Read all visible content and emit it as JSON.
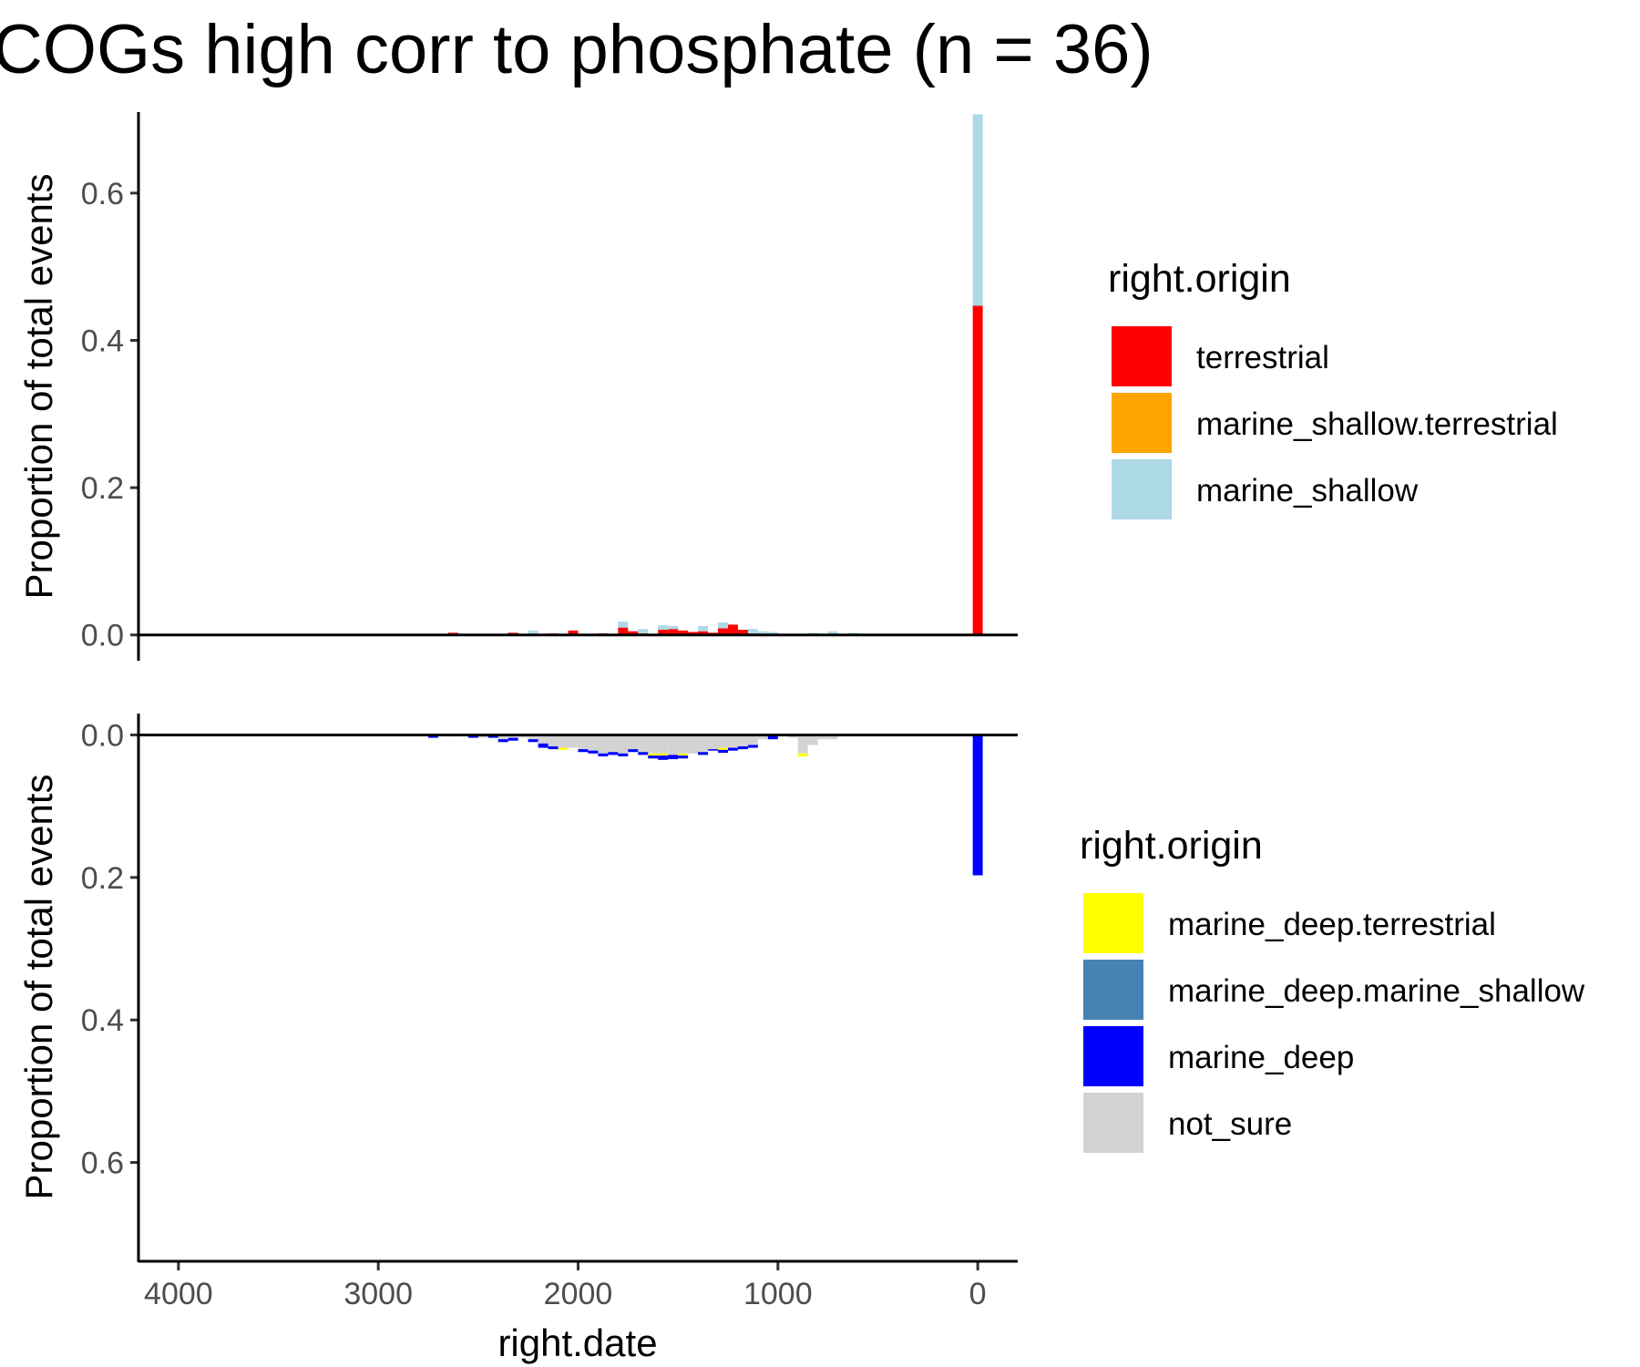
{
  "title": "COGs high corr to phosphate (n = 36)",
  "colors": {
    "terrestrial": "#ff0000",
    "marine_shallow.terrestrial": "#ffa500",
    "marine_shallow": "#add8e6",
    "marine_deep.terrestrial": "#ffff00",
    "marine_deep.marine_shallow": "#4682b4",
    "marine_deep": "#0000ff",
    "not_sure": "#d3d3d3"
  },
  "chart_data": [
    {
      "type": "bar",
      "panel": "top",
      "xlabel": "",
      "ylabel": "Proportion of total events",
      "xlim": [
        4200,
        -200
      ],
      "ylim": [
        -0.035,
        0.71
      ],
      "y_ticks": [
        "0.0",
        "0.2",
        "0.4",
        "0.6"
      ],
      "y_tick_values": [
        0,
        0.2,
        0.4,
        0.6
      ],
      "grid": false,
      "legend": {
        "title": "right.origin",
        "position": "right",
        "entries": [
          "terrestrial",
          "marine_shallow.terrestrial",
          "marine_shallow"
        ]
      },
      "bin_width": 50,
      "series": [
        {
          "name": "terrestrial",
          "color": "#ff0000",
          "points": [
            [
              2625,
              0.003
            ],
            [
              2325,
              0.003
            ],
            [
              2125,
              0.002
            ],
            [
              2025,
              0.006
            ],
            [
              1875,
              0.002
            ],
            [
              1775,
              0.01
            ],
            [
              1725,
              0.005
            ],
            [
              1675,
              0.002
            ],
            [
              1575,
              0.007
            ],
            [
              1525,
              0.008
            ],
            [
              1475,
              0.006
            ],
            [
              1425,
              0.004
            ],
            [
              1375,
              0.005
            ],
            [
              1325,
              0.003
            ],
            [
              1275,
              0.009
            ],
            [
              1225,
              0.014
            ],
            [
              1175,
              0.007
            ],
            [
              1125,
              0.002
            ],
            [
              0,
              0.447
            ]
          ]
        },
        {
          "name": "marine_shallow",
          "color": "#add8e6",
          "points": [
            [
              2225,
              0.006
            ],
            [
              1775,
              0.008
            ],
            [
              1675,
              0.006
            ],
            [
              1575,
              0.006
            ],
            [
              1525,
              0.004
            ],
            [
              1375,
              0.007
            ],
            [
              1275,
              0.008
            ],
            [
              1125,
              0.006
            ],
            [
              1075,
              0.005
            ],
            [
              1025,
              0.004
            ],
            [
              825,
              0.003
            ],
            [
              725,
              0.005
            ],
            [
              625,
              0.003
            ],
            [
              0,
              0.26
            ]
          ]
        }
      ]
    },
    {
      "type": "bar",
      "panel": "bottom",
      "xlabel": "right.date",
      "ylabel": "Proportion of total events",
      "xlim": [
        4200,
        -200
      ],
      "ylim": [
        0.74,
        -0.03
      ],
      "y_ticks": [
        "0.0",
        "0.2",
        "0.4",
        "0.6"
      ],
      "y_tick_values": [
        0,
        0.2,
        0.4,
        0.6
      ],
      "x_ticks": [
        "4000",
        "3000",
        "2000",
        "1000",
        "0"
      ],
      "x_tick_values": [
        4000,
        3000,
        2000,
        1000,
        0
      ],
      "grid": false,
      "legend": {
        "title": "right.origin",
        "position": "right",
        "entries": [
          "marine_deep.terrestrial",
          "marine_deep.marine_shallow",
          "marine_deep",
          "not_sure"
        ]
      },
      "bin_width": 50,
      "series": [
        {
          "name": "not_sure",
          "color": "#d3d3d3",
          "points": [
            [
              2475,
              0.004
            ],
            [
              2375,
              0.006
            ],
            [
              2325,
              0.004
            ],
            [
              2275,
              0.004
            ],
            [
              2225,
              0.006
            ],
            [
              2175,
              0.012
            ],
            [
              2125,
              0.016
            ],
            [
              2075,
              0.018
            ],
            [
              2025,
              0.018
            ],
            [
              1975,
              0.02
            ],
            [
              1925,
              0.022
            ],
            [
              1875,
              0.026
            ],
            [
              1825,
              0.024
            ],
            [
              1775,
              0.026
            ],
            [
              1725,
              0.02
            ],
            [
              1675,
              0.024
            ],
            [
              1625,
              0.026
            ],
            [
              1575,
              0.026
            ],
            [
              1525,
              0.028
            ],
            [
              1475,
              0.026
            ],
            [
              1425,
              0.026
            ],
            [
              1375,
              0.024
            ],
            [
              1325,
              0.02
            ],
            [
              1275,
              0.018
            ],
            [
              1225,
              0.018
            ],
            [
              1175,
              0.016
            ],
            [
              1125,
              0.014
            ],
            [
              1075,
              0.006
            ],
            [
              1025,
              0.002
            ],
            [
              975,
              0.002
            ],
            [
              925,
              0.004
            ],
            [
              875,
              0.026
            ],
            [
              825,
              0.014
            ],
            [
              775,
              0.006
            ],
            [
              725,
              0.006
            ]
          ]
        },
        {
          "name": "marine_deep.terrestrial",
          "color": "#ffff00",
          "points": [
            [
              2075,
              0.003
            ],
            [
              1625,
              0.003
            ],
            [
              1575,
              0.003
            ],
            [
              1475,
              0.003
            ],
            [
              1275,
              0.003
            ],
            [
              875,
              0.004
            ]
          ]
        },
        {
          "name": "marine_deep",
          "color": "#0000ff",
          "points": [
            [
              2725,
              0.004
            ],
            [
              2625,
              0.002
            ],
            [
              2525,
              0.004
            ],
            [
              2425,
              0.004
            ],
            [
              2375,
              0.004
            ],
            [
              2325,
              0.004
            ],
            [
              2225,
              0.004
            ],
            [
              2175,
              0.006
            ],
            [
              2125,
              0.004
            ],
            [
              1975,
              0.004
            ],
            [
              1925,
              0.004
            ],
            [
              1875,
              0.004
            ],
            [
              1825,
              0.004
            ],
            [
              1775,
              0.004
            ],
            [
              1725,
              0.004
            ],
            [
              1675,
              0.004
            ],
            [
              1625,
              0.004
            ],
            [
              1575,
              0.006
            ],
            [
              1525,
              0.006
            ],
            [
              1475,
              0.004
            ],
            [
              1375,
              0.004
            ],
            [
              1325,
              0.002
            ],
            [
              1275,
              0.004
            ],
            [
              1225,
              0.004
            ],
            [
              1175,
              0.004
            ],
            [
              1125,
              0.004
            ],
            [
              1025,
              0.004
            ],
            [
              0,
              0.197
            ]
          ]
        },
        {
          "name": "marine_deep.marine_shallow",
          "color": "#4682b4",
          "points": []
        }
      ]
    }
  ]
}
